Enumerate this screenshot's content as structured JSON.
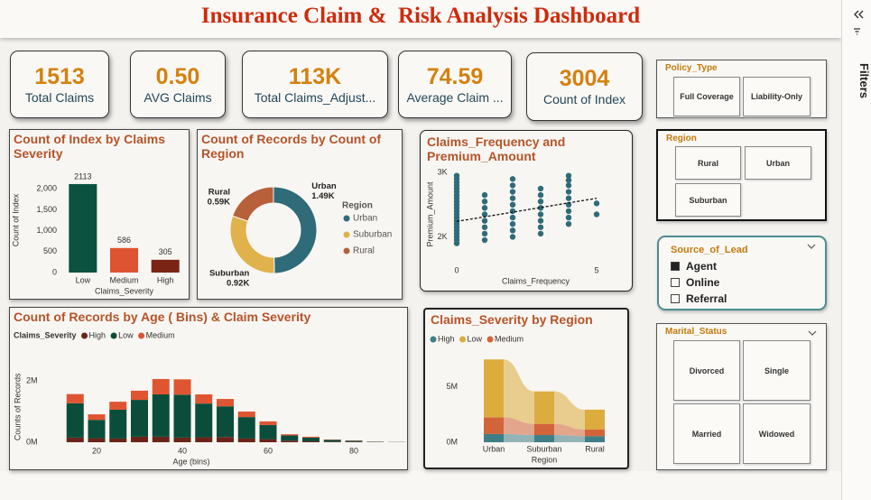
{
  "title": "Insurance Claim &  Risk Analysis Dashboard",
  "filters_pane": {
    "label": "Filters"
  },
  "cards": [
    {
      "value": "1513",
      "label": "Total Claims"
    },
    {
      "value": "0.50",
      "label": "AVG Claims"
    },
    {
      "value": "113K",
      "label": "Total Claims_Adjust..."
    },
    {
      "value": "74.59",
      "label": "Average Claim ..."
    },
    {
      "value": "3004",
      "label": "Count of Index"
    }
  ],
  "slicers": [
    {
      "title": "Policy_Type",
      "options": [
        "Full Coverage",
        "Liability-Only"
      ]
    },
    {
      "title": "Region",
      "options": [
        "Rural",
        "Urban",
        "Suburban"
      ]
    },
    {
      "title": "Source_of_Lead",
      "options": [
        "Agent",
        "Online",
        "Referral"
      ],
      "selected": [
        true,
        false,
        false
      ]
    },
    {
      "title": "Marital_Status",
      "options": [
        "Divorced",
        "Single",
        "Married",
        "Widowed"
      ]
    }
  ],
  "chart_data": [
    {
      "type": "bar",
      "title": "Count of Index by Claims Severity",
      "x_label": "Claims_Severity",
      "y_label": "Count of Index",
      "categories": [
        "Low",
        "Medium",
        "High"
      ],
      "values": [
        2113,
        586,
        305
      ],
      "colors": [
        "#0b5240",
        "#de5331",
        "#7a2416"
      ],
      "ylim": [
        0,
        2500
      ],
      "yticks": [
        0,
        500,
        {
          "value": 1000,
          "label": "1,000"
        },
        {
          "value": 1500,
          "label": "1,500"
        },
        {
          "value": 2000,
          "label": "2,000"
        }
      ]
    },
    {
      "type": "donut",
      "title": "Count of Records by Count of Region",
      "legend_title": "Region",
      "categories": [
        "Urban",
        "Suburban",
        "Rural"
      ],
      "values": [
        1490,
        920,
        590
      ],
      "value_labels": [
        "1.49K",
        "0.92K",
        "0.59K"
      ],
      "colors": [
        "#2f6b78",
        "#e0b24c",
        "#b7603a"
      ]
    },
    {
      "type": "scatter",
      "title": "Claims_Frequency and Premium_Amount",
      "x_label": "Claims_Frequency",
      "y_label": "Premium_Amount",
      "x": [
        0,
        0,
        0,
        0,
        0,
        0,
        0,
        0,
        0,
        0,
        0,
        0,
        0,
        0,
        0,
        0,
        0,
        0,
        0,
        0,
        0,
        0,
        1,
        1,
        1,
        1,
        1,
        1,
        1,
        1,
        2,
        2,
        2,
        2,
        2,
        2,
        2,
        2,
        2,
        2,
        3,
        3,
        3,
        3,
        3,
        3,
        3,
        3,
        4,
        4,
        4,
        4,
        4,
        4,
        4,
        4,
        4,
        5,
        5
      ],
      "values": [
        1900,
        1950,
        2000,
        2050,
        2100,
        2150,
        2200,
        2250,
        2300,
        2350,
        2400,
        2450,
        2500,
        2550,
        2600,
        2650,
        2700,
        2750,
        2800,
        2850,
        2900,
        2950,
        1950,
        2050,
        2150,
        2250,
        2350,
        2450,
        2550,
        2650,
        2000,
        2100,
        2200,
        2300,
        2400,
        2500,
        2600,
        2700,
        2800,
        2900,
        2050,
        2150,
        2250,
        2350,
        2450,
        2550,
        2650,
        2750,
        2200,
        2300,
        2400,
        2500,
        2600,
        2700,
        2800,
        2880,
        2950,
        2350,
        2520
      ],
      "color": "#2f6b78",
      "xlim": [
        -0.3,
        5.3
      ],
      "ylim": [
        1600,
        3100
      ],
      "xticks": [
        0,
        5
      ],
      "yticks": [
        {
          "value": 2000,
          "label": "2K"
        },
        {
          "value": 3000,
          "label": "3K"
        }
      ],
      "trendline": {
        "x": [
          0,
          5
        ],
        "values": [
          2240,
          2600
        ]
      }
    },
    {
      "type": "stacked_bar",
      "title": "Count of Records by Age ( Bins) & Claim Severity",
      "legend_title": "Claims_Severity",
      "x_label": "Age (bins)",
      "y_label": "Counts of Records",
      "x": [
        15,
        20,
        25,
        30,
        35,
        40,
        45,
        50,
        55,
        60,
        65,
        70,
        75,
        80,
        85,
        90
      ],
      "series": [
        {
          "name": "High",
          "color": "#6b2417",
          "values": [
            150000,
            130000,
            120000,
            180000,
            180000,
            150000,
            160000,
            170000,
            120000,
            100000,
            50000,
            30000,
            20000,
            10000,
            5000,
            2000
          ]
        },
        {
          "name": "Low",
          "color": "#0b4d3b",
          "values": [
            1120000,
            600000,
            940000,
            1200000,
            1380000,
            1400000,
            1100000,
            1000000,
            700000,
            460000,
            170000,
            120000,
            60000,
            40000,
            10000,
            6000
          ]
        },
        {
          "name": "Medium",
          "color": "#df5531",
          "values": [
            300000,
            180000,
            260000,
            300000,
            500000,
            500000,
            300000,
            240000,
            180000,
            120000,
            40000,
            30000,
            10000,
            10000,
            5000,
            2000
          ]
        }
      ],
      "xlim": [
        10,
        92
      ],
      "xticks": [
        20,
        40,
        60,
        80
      ],
      "ylim": [
        0,
        2600000
      ],
      "yticks": [
        {
          "value": 0,
          "label": "0M"
        },
        {
          "value": 2000000,
          "label": "2M"
        }
      ]
    },
    {
      "type": "ribbon",
      "title": "Claims_Severity by Region",
      "x_label": "Region",
      "categories": [
        "Urban",
        "Suburban",
        "Rural"
      ],
      "series": [
        {
          "name": "High",
          "color": "#3f7e86",
          "values": [
            740000,
            650000,
            550000
          ]
        },
        {
          "name": "Low",
          "color": "#dcac3e",
          "values": [
            5250000,
            2950000,
            1800000
          ]
        },
        {
          "name": "Medium",
          "color": "#d2643a",
          "values": [
            1500000,
            1000000,
            600000
          ]
        }
      ],
      "stack_order": [
        0,
        2,
        1
      ],
      "ylim": [
        0,
        8000000
      ],
      "yticks": [
        {
          "value": 0,
          "label": "0M"
        },
        {
          "value": 5000000,
          "label": "5M"
        }
      ]
    }
  ]
}
